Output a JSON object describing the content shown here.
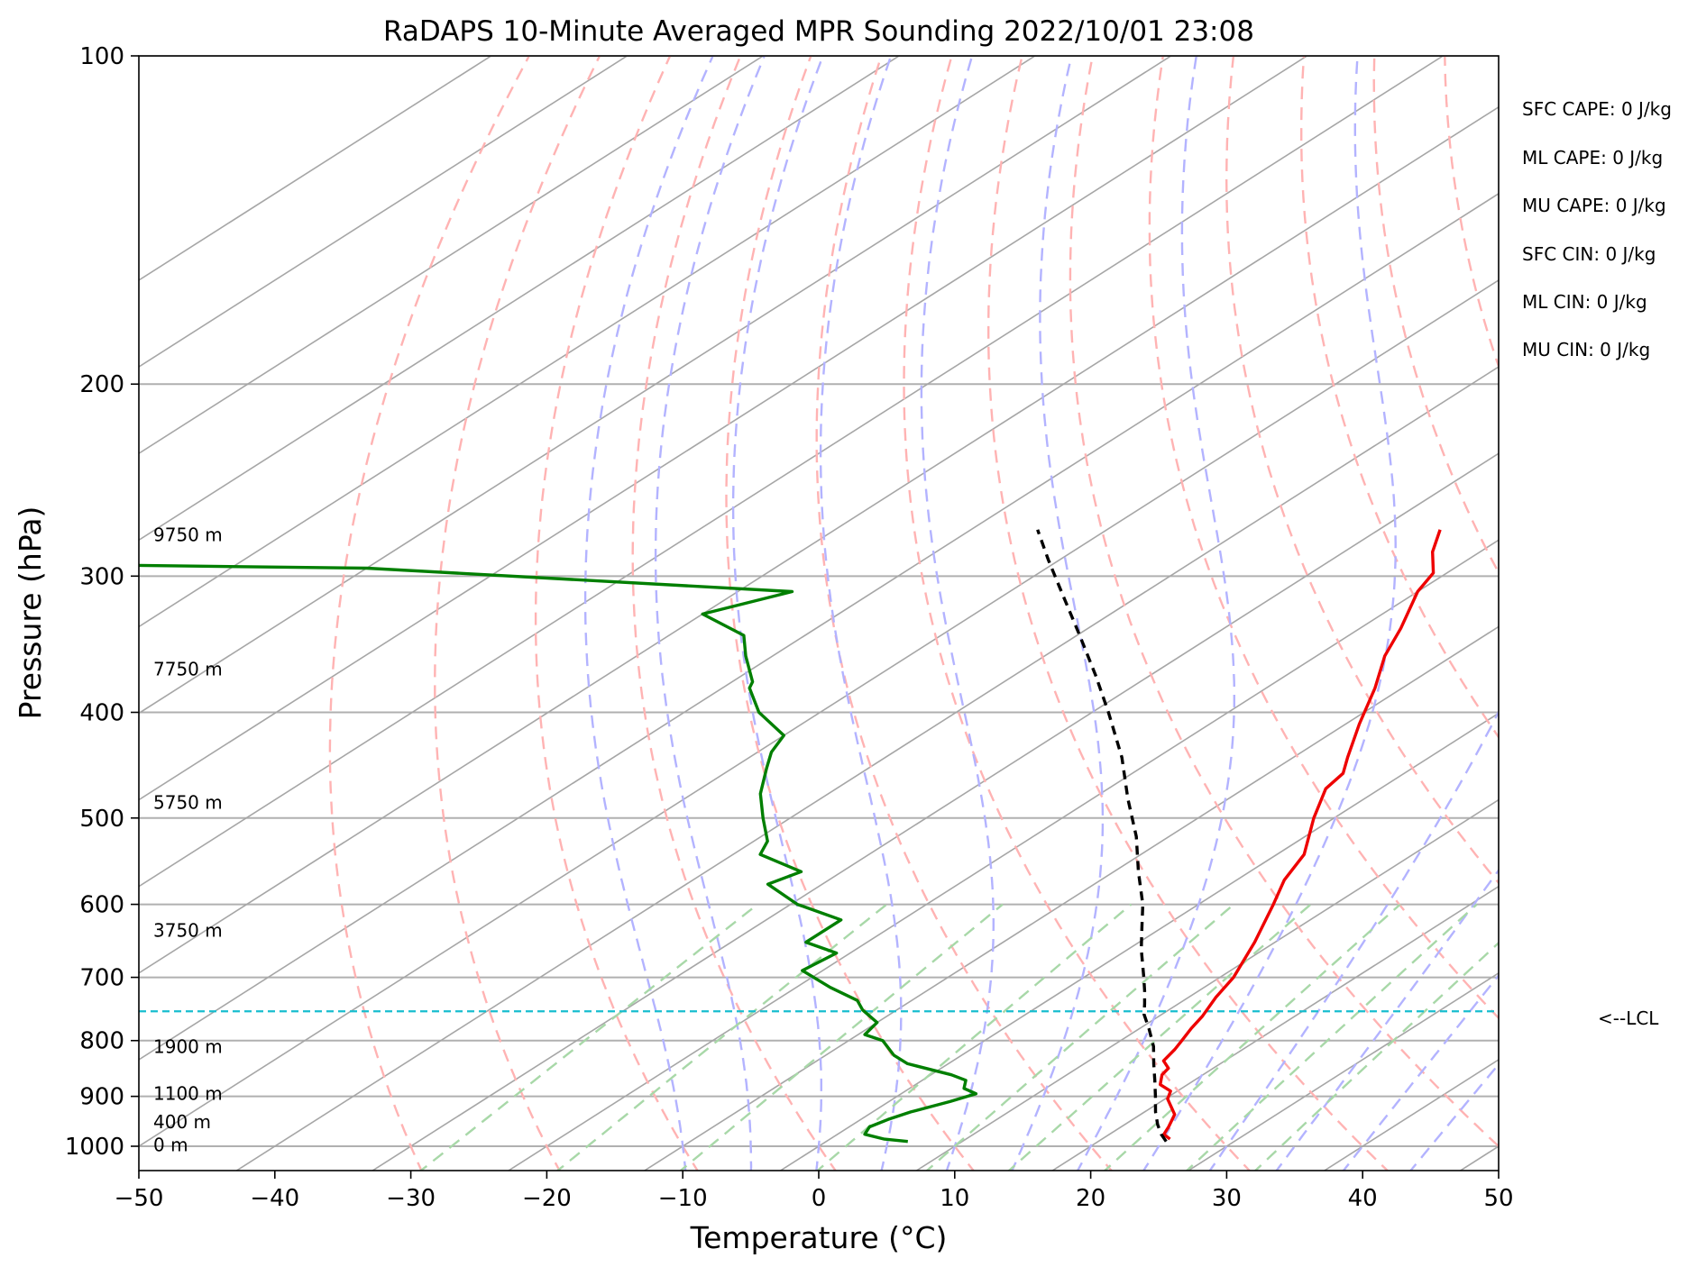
{
  "chart_data": {
    "type": "skew-t",
    "title": "RaDAPS 10-Minute Averaged MPR Sounding 2022/10/01 23:08",
    "xlabel": "Temperature (°C)",
    "ylabel": "Pressure (hPa)",
    "xlim": [
      -50,
      50
    ],
    "ylim": [
      1050,
      100
    ],
    "y_scale": "log",
    "grid": true,
    "x_ticks": [
      -50,
      -40,
      -30,
      -20,
      -10,
      0,
      10,
      20,
      30,
      40,
      50
    ],
    "x_tick_labels": [
      "−50",
      "−40",
      "−30",
      "−20",
      "−10",
      "0",
      "10",
      "20",
      "30",
      "40",
      "50"
    ],
    "y_ticks": [
      100,
      200,
      300,
      400,
      500,
      600,
      700,
      800,
      900,
      1000
    ],
    "y_tick_labels": [
      "100",
      "200",
      "300",
      "400",
      "500",
      "600",
      "700",
      "800",
      "900",
      "1000"
    ],
    "colors": {
      "temperature": "#ee0000",
      "dewpoint": "#007f00",
      "parcel": "#000000",
      "lcl": "#17becf",
      "isotherm": "#a6a6a6",
      "dry_adiabat": "#ffb3b3",
      "moist_adiabat": "#b3b3ff",
      "mixing_ratio": "#a8d8a8"
    },
    "series": [
      {
        "key": "temperature",
        "pressure": [
          985,
          975,
          960,
          935,
          905,
          890,
          878,
          860,
          848,
          835,
          815,
          800,
          780,
          760,
          730,
          700,
          650,
          600,
          570,
          540,
          500,
          470,
          455,
          440,
          410,
          380,
          355,
          335,
          310,
          298,
          285,
          272
        ],
        "temp_c": [
          25.0,
          24.0,
          23.5,
          22.5,
          20.2,
          19.5,
          18.0,
          17.0,
          16.7,
          15.5,
          15.0,
          14.5,
          13.8,
          13.2,
          12.0,
          11.0,
          8.5,
          5.5,
          3.5,
          2.0,
          -1.5,
          -4.0,
          -4.5,
          -6.0,
          -9.0,
          -12.0,
          -15.0,
          -17.0,
          -20.0,
          -21.0,
          -23.5,
          -25.5
        ]
      },
      {
        "key": "dewpoint",
        "pressure": [
          990,
          985,
          975,
          960,
          945,
          930,
          910,
          895,
          885,
          870,
          860,
          840,
          825,
          800,
          790,
          770,
          750,
          735,
          715,
          690,
          665,
          650,
          620,
          600,
          575,
          560,
          540,
          525,
          500,
          475,
          450,
          435,
          420,
          400,
          380,
          375,
          355,
          340,
          325,
          310,
          295,
          292
        ],
        "dewpoint_c": [
          6.0,
          4.0,
          2.0,
          1.5,
          2.0,
          2.8,
          4.5,
          5.5,
          4.0,
          3.2,
          1.5,
          -3.0,
          -5.0,
          -7.5,
          -9.5,
          -10.0,
          -12.5,
          -14.0,
          -17.5,
          -21.5,
          -21.0,
          -24.5,
          -24.5,
          -29.5,
          -34.0,
          -33.0,
          -38.0,
          -39.0,
          -42.0,
          -45.0,
          -47.5,
          -49.0,
          -50.0,
          -54.5,
          -58.0,
          -58.5,
          -62.0,
          -64.5,
          -70.0,
          -66.0,
          -100.0,
          -130.0
        ]
      },
      {
        "key": "parcel",
        "pressure": [
          990,
          975,
          955,
          930,
          900,
          870,
          840,
          810,
          780,
          757,
          740,
          720,
          700,
          660,
          630,
          600,
          560,
          520,
          480,
          440,
          400,
          370,
          340,
          310,
          290,
          272
        ],
        "temp_c": [
          25.0,
          23.8,
          22.4,
          20.8,
          19.0,
          17.1,
          15.1,
          13.1,
          10.7,
          8.7,
          7.5,
          6.0,
          4.4,
          1.0,
          -1.5,
          -4.1,
          -8.2,
          -12.4,
          -17.4,
          -22.6,
          -28.8,
          -34.0,
          -39.8,
          -46.2,
          -50.8,
          -55.1
        ]
      }
    ],
    "isotherms_c": [
      -150,
      -140,
      -130,
      -120,
      -110,
      -100,
      -90,
      -80,
      -70,
      -60,
      -50,
      -40,
      -30,
      -20,
      -10,
      0,
      10,
      20,
      30,
      40,
      50
    ],
    "dry_adiabats_c": [
      -30,
      -20,
      -10,
      0,
      10,
      20,
      30,
      40,
      50,
      60,
      70,
      80,
      90,
      100,
      110,
      120,
      130,
      140,
      150,
      160,
      170,
      180,
      190,
      200
    ],
    "moist_adiabats_c": [
      -10,
      -5,
      0,
      5,
      10,
      15,
      20,
      25,
      30,
      35,
      40,
      45
    ],
    "mixing_ratio_lines_c_at_1000": [
      -27,
      -17,
      -8,
      2,
      10,
      16,
      23,
      29,
      34
    ],
    "lcl_pressure": 752,
    "height_labels": [
      {
        "text": "9750 m",
        "pressure": 275
      },
      {
        "text": "7750 m",
        "pressure": 365
      },
      {
        "text": "5750 m",
        "pressure": 484
      },
      {
        "text": "3750 m",
        "pressure": 634
      },
      {
        "text": "1900 m",
        "pressure": 810
      },
      {
        "text": "1100 m",
        "pressure": 895
      },
      {
        "text": "400 m",
        "pressure": 950
      },
      {
        "text": "0 m",
        "pressure": 997
      }
    ],
    "annotations": [
      "SFC CAPE: 0 J/kg",
      "ML CAPE: 0 J/kg",
      "MU CAPE: 0 J/kg",
      "SFC CIN: 0 J/kg",
      "ML CIN: 0 J/kg",
      "MU CIN: 0 J/kg"
    ],
    "lcl_label": "<--LCL"
  }
}
